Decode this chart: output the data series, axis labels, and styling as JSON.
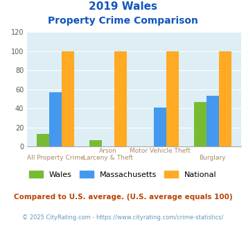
{
  "title_line1": "2019 Wales",
  "title_line2": "Property Crime Comparison",
  "cat_labels_top": [
    "",
    "Arson",
    "Motor Vehicle Theft",
    ""
  ],
  "cat_labels_bot": [
    "All Property Crime",
    "Larceny & Theft",
    "",
    "Burglary"
  ],
  "wales": [
    13,
    7,
    0,
    47
  ],
  "massachusetts": [
    57,
    0,
    41,
    53
  ],
  "national": [
    100,
    100,
    100,
    100
  ],
  "wales_color": "#77bb33",
  "massachusetts_color": "#4499ee",
  "national_color": "#ffaa22",
  "bg_color": "#ddeef5",
  "ylim": [
    0,
    120
  ],
  "yticks": [
    0,
    20,
    40,
    60,
    80,
    100,
    120
  ],
  "legend_labels": [
    "Wales",
    "Massachusetts",
    "National"
  ],
  "footnote1": "Compared to U.S. average. (U.S. average equals 100)",
  "footnote2": "© 2025 CityRating.com - https://www.cityrating.com/crime-statistics/",
  "title_color": "#1155bb",
  "xlabel_color": "#aa8866",
  "footnote1_color": "#bb4400",
  "footnote2_color": "#6699bb"
}
